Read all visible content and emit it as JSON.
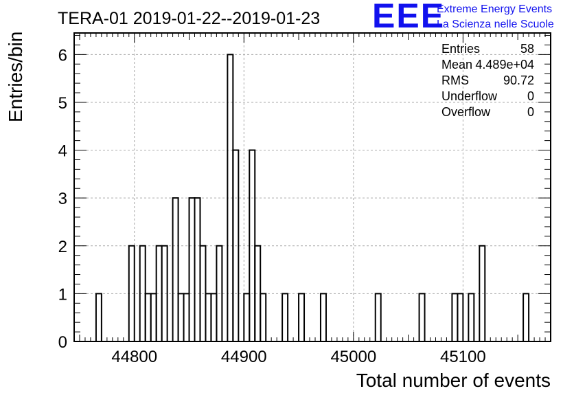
{
  "chart_data": {
    "type": "bar",
    "title": "TERA-01 2019-01-22--2019-01-23",
    "xlabel": "Total number of events",
    "ylabel": "Entries/bin",
    "xlim": [
      44745,
      45180
    ],
    "ylim": [
      0,
      6.45
    ],
    "bin_width": 5,
    "grid": true,
    "xticks": [
      44800,
      44900,
      45000,
      45100
    ],
    "yticks": [
      0,
      1,
      2,
      3,
      4,
      5,
      6
    ],
    "bins": [
      {
        "x": 44765,
        "y": 1
      },
      {
        "x": 44795,
        "y": 2
      },
      {
        "x": 44805,
        "y": 2
      },
      {
        "x": 44810,
        "y": 1
      },
      {
        "x": 44815,
        "y": 1
      },
      {
        "x": 44820,
        "y": 2
      },
      {
        "x": 44825,
        "y": 2
      },
      {
        "x": 44835,
        "y": 3
      },
      {
        "x": 44840,
        "y": 1
      },
      {
        "x": 44845,
        "y": 1
      },
      {
        "x": 44850,
        "y": 3
      },
      {
        "x": 44855,
        "y": 3
      },
      {
        "x": 44860,
        "y": 2
      },
      {
        "x": 44865,
        "y": 1
      },
      {
        "x": 44870,
        "y": 1
      },
      {
        "x": 44875,
        "y": 2
      },
      {
        "x": 44885,
        "y": 6
      },
      {
        "x": 44890,
        "y": 4
      },
      {
        "x": 44900,
        "y": 1
      },
      {
        "x": 44905,
        "y": 4
      },
      {
        "x": 44910,
        "y": 2
      },
      {
        "x": 44915,
        "y": 1
      },
      {
        "x": 44935,
        "y": 1
      },
      {
        "x": 44950,
        "y": 1
      },
      {
        "x": 44970,
        "y": 1
      },
      {
        "x": 45020,
        "y": 1
      },
      {
        "x": 45060,
        "y": 1
      },
      {
        "x": 45090,
        "y": 1
      },
      {
        "x": 45095,
        "y": 1
      },
      {
        "x": 45105,
        "y": 1
      },
      {
        "x": 45115,
        "y": 2
      },
      {
        "x": 45155,
        "y": 1
      }
    ],
    "legend_position": "top-right",
    "stats": [
      {
        "label": "Entries",
        "value": "58"
      },
      {
        "label": "Mean",
        "value": "4.489e+04"
      },
      {
        "label": "RMS",
        "value": "90.72"
      },
      {
        "label": "Underflow",
        "value": "0"
      },
      {
        "label": "Overflow",
        "value": "0"
      }
    ]
  },
  "logo": {
    "mark": "EEE",
    "line1": "Extreme Energy Events",
    "line2": "La Scienza nelle Scuole"
  },
  "colors": {
    "line": "#000000",
    "grid": "#aaaaaa",
    "logo": "#1111ee"
  }
}
